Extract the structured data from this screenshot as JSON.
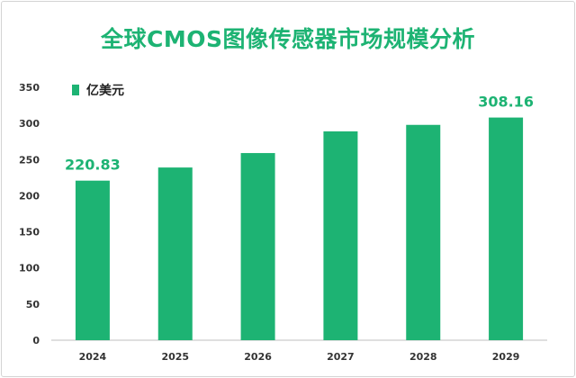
{
  "chart_data": {
    "type": "bar",
    "title": "全球CMOS图像传感器市场规模分析",
    "categories": [
      "2024",
      "2025",
      "2026",
      "2027",
      "2028",
      "2029"
    ],
    "series": [
      {
        "name": "亿美元",
        "values": [
          220.83,
          239,
          259,
          289,
          298,
          308.16
        ]
      }
    ],
    "data_labels": [
      "220.83",
      "",
      "",
      "",
      "",
      "308.16"
    ],
    "yticks": [
      "0",
      "50",
      "100",
      "150",
      "200",
      "250",
      "300",
      "350"
    ],
    "ylim": [
      0,
      350
    ],
    "xlabel": "",
    "ylabel": "",
    "grid": false,
    "legend_position": "top-left",
    "colors": {
      "bar": "#1db373",
      "title": "#1db373",
      "label": "#1db373"
    }
  }
}
